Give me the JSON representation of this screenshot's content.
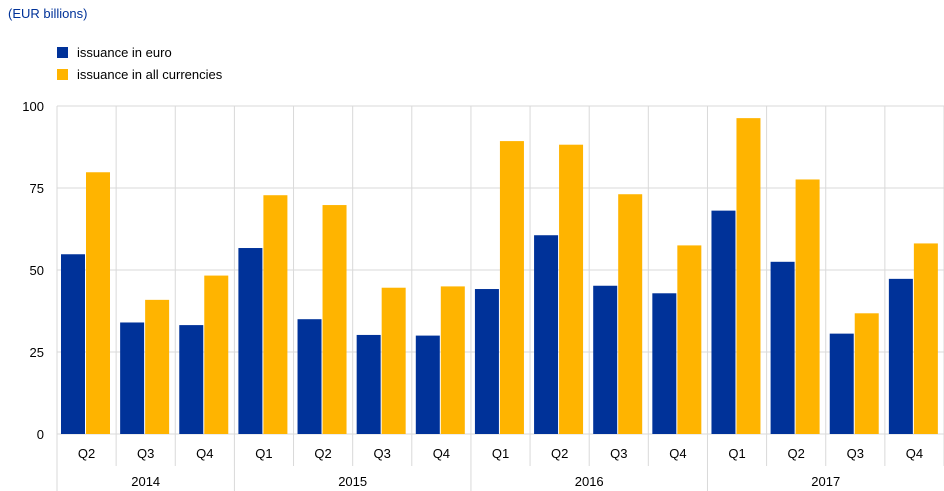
{
  "chart_data": {
    "type": "bar",
    "unit_label": "(EUR billions)",
    "categories": [
      "Q2",
      "Q3",
      "Q4",
      "Q1",
      "Q2",
      "Q3",
      "Q4",
      "Q1",
      "Q2",
      "Q3",
      "Q4",
      "Q1",
      "Q2",
      "Q3",
      "Q4"
    ],
    "years": [
      {
        "label": "2014",
        "start": 0,
        "count": 3
      },
      {
        "label": "2015",
        "start": 3,
        "count": 4
      },
      {
        "label": "2016",
        "start": 7,
        "count": 4
      },
      {
        "label": "2017",
        "start": 11,
        "count": 4
      }
    ],
    "series": [
      {
        "name": "issuance in euro",
        "color": "#003299",
        "values": [
          54.8,
          34.0,
          33.2,
          56.7,
          35.0,
          30.2,
          30.0,
          44.2,
          60.6,
          45.2,
          42.9,
          68.1,
          52.5,
          30.6,
          47.3
        ]
      },
      {
        "name": "issuance in all currencies",
        "color": "#FFB400",
        "values": [
          79.8,
          40.9,
          48.3,
          72.8,
          69.8,
          44.6,
          45.0,
          89.3,
          88.2,
          73.1,
          57.5,
          96.3,
          77.6,
          36.8,
          58.1
        ]
      }
    ],
    "ylim": [
      0,
      100
    ],
    "yticks": [
      0,
      25,
      50,
      75,
      100
    ],
    "grid": true,
    "legend_position": "top-left"
  }
}
